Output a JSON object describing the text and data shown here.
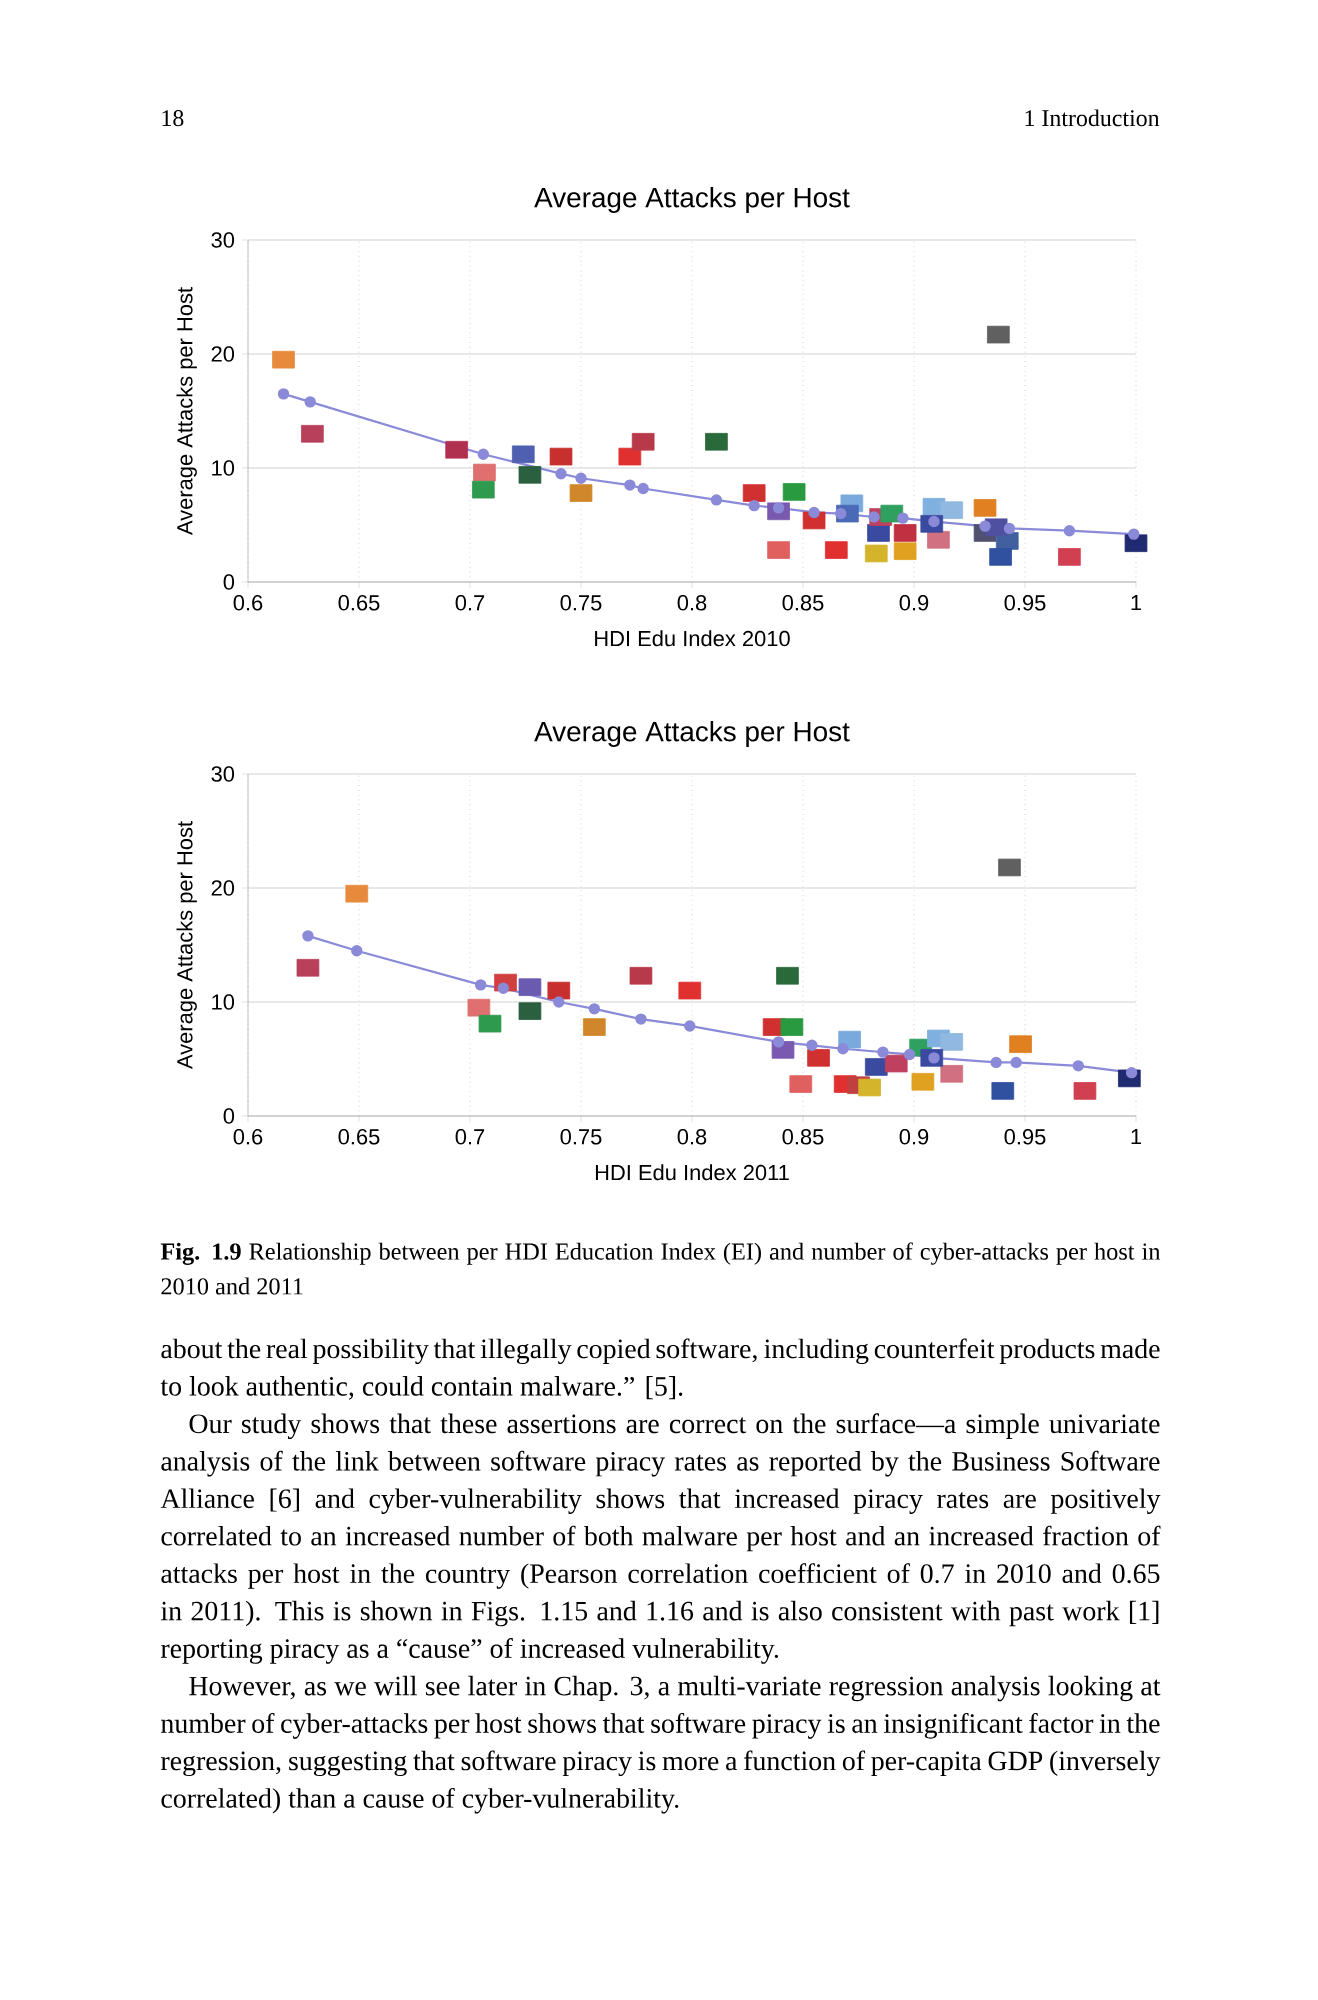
{
  "chart_data": [
    {
      "type": "scatter",
      "title": "Average Attacks per Host",
      "xlabel": "HDI Edu Index 2010",
      "ylabel": "Average Attacks per Host",
      "xlim": [
        0.6,
        1
      ],
      "ylim": [
        0,
        30
      ],
      "xticks": [
        0.6,
        0.65,
        0.7,
        0.75,
        0.8,
        0.85,
        0.9,
        0.95,
        1
      ],
      "yticks": [
        0,
        10,
        20,
        30
      ],
      "grid": true,
      "series": [
        {
          "type": "scatter",
          "marker": "square",
          "x": [
            0.616,
            0.629,
            0.694,
            0.7065,
            0.706,
            0.724,
            0.727,
            0.741,
            0.75,
            0.772,
            0.778,
            0.811,
            0.938,
            0.828,
            0.846,
            0.839,
            0.855,
            0.839,
            0.865,
            0.872,
            0.87,
            0.883,
            0.884,
            0.885,
            0.896,
            0.896,
            0.89,
            0.909,
            0.917,
            0.911,
            0.908,
            0.932,
            0.932,
            0.942,
            0.939,
            0.97,
            1.0,
            0.937
          ],
          "values": [
            19.5,
            13.0,
            11.6,
            9.6,
            8.1,
            11.2,
            9.4,
            11.0,
            7.8,
            11.0,
            12.3,
            12.3,
            21.7,
            7.8,
            7.9,
            6.2,
            5.4,
            2.8,
            2.8,
            6.9,
            6.0,
            2.5,
            4.3,
            5.7,
            2.7,
            4.3,
            6.0,
            6.6,
            6.3,
            3.7,
            5.1,
            6.5,
            4.3,
            3.6,
            2.2,
            2.2,
            3.4,
            4.8
          ],
          "colors": [
            "#e88a3c",
            "#b8405a",
            "#b03050",
            "#e07070",
            "#2e9a4e",
            "#5060b0",
            "#2a6040",
            "#c83030",
            "#d0862a",
            "#e03030",
            "#b83a4a",
            "#2a6a3a",
            "#606060",
            "#d03030",
            "#2a9a40",
            "#7a5ab0",
            "#d03030",
            "#e06060",
            "#e03030",
            "#7aaadd",
            "#4a6ab8",
            "#d4b42a",
            "#3a4aa0",
            "#c04060",
            "#e0a020",
            "#c03040",
            "#30a060",
            "#80b0e0",
            "#90b8e0",
            "#d07080",
            "#3a4aa0",
            "#e08020",
            "#505070",
            "#4060a0",
            "#3050a0",
            "#d04050",
            "#202a70",
            "#5050a0"
          ]
        },
        {
          "type": "line",
          "marker": "circle",
          "color": "#8a8ad8",
          "x": [
            0.616,
            0.628,
            0.706,
            0.741,
            0.75,
            0.772,
            0.778,
            0.811,
            0.828,
            0.839,
            0.855,
            0.867,
            0.882,
            0.895,
            0.909,
            0.932,
            0.943,
            0.97,
            0.999
          ],
          "values": [
            16.5,
            15.8,
            11.2,
            9.5,
            9.1,
            8.5,
            8.2,
            7.2,
            6.7,
            6.5,
            6.1,
            6.0,
            5.7,
            5.6,
            5.3,
            4.9,
            4.7,
            4.5,
            4.2
          ]
        }
      ],
      "annotations": [
        "18",
        "1 Introduction"
      ]
    },
    {
      "type": "scatter",
      "title": "Average Attacks per Host",
      "xlabel": "HDI Edu Index 2011",
      "ylabel": "Average Attacks per Host",
      "xlim": [
        0.6,
        1
      ],
      "ylim": [
        0,
        30
      ],
      "xticks": [
        0.6,
        0.65,
        0.7,
        0.75,
        0.8,
        0.85,
        0.9,
        0.95,
        1
      ],
      "yticks": [
        0,
        10,
        20,
        30
      ],
      "grid": true,
      "series": [
        {
          "type": "scatter",
          "marker": "square",
          "x": [
            0.649,
            0.627,
            0.704,
            0.709,
            0.716,
            0.727,
            0.727,
            0.74,
            0.756,
            0.777,
            0.799,
            0.843,
            0.943,
            0.837,
            0.845,
            0.841,
            0.849,
            0.857,
            0.869,
            0.875,
            0.88,
            0.871,
            0.883,
            0.892,
            0.904,
            0.903,
            0.911,
            0.917,
            0.917,
            0.908,
            0.948,
            0.94,
            0.977,
            0.997
          ],
          "values": [
            19.5,
            13.0,
            9.5,
            8.1,
            11.7,
            11.3,
            9.2,
            11.0,
            7.8,
            12.3,
            11.0,
            12.3,
            21.8,
            7.8,
            7.8,
            5.8,
            2.8,
            5.1,
            2.8,
            2.7,
            2.5,
            6.7,
            4.3,
            4.6,
            3.0,
            6.0,
            6.8,
            6.5,
            3.7,
            5.1,
            6.3,
            2.2,
            2.2,
            3.3
          ],
          "colors": [
            "#e88a3c",
            "#b8405a",
            "#e07070",
            "#2e9a4e",
            "#d04040",
            "#6a5ab0",
            "#2a6040",
            "#c83030",
            "#d0862a",
            "#b83a4a",
            "#e03030",
            "#2a6a3a",
            "#606060",
            "#d03030",
            "#2a9a40",
            "#7a5ab0",
            "#e06060",
            "#d03030",
            "#e03030",
            "#c04040",
            "#d4b42a",
            "#7aaadd",
            "#3a4aa0",
            "#c04060",
            "#e0a020",
            "#30a060",
            "#80b0e0",
            "#90b8e0",
            "#d07080",
            "#3a4aa0",
            "#e08020",
            "#3050a0",
            "#d04050",
            "#202a70"
          ]
        },
        {
          "type": "line",
          "marker": "circle",
          "color": "#8a8ad8",
          "x": [
            0.627,
            0.649,
            0.7048,
            0.715,
            0.74,
            0.756,
            0.777,
            0.799,
            0.839,
            0.854,
            0.868,
            0.886,
            0.898,
            0.909,
            0.937,
            0.946,
            0.974,
            0.998
          ],
          "values": [
            15.8,
            14.5,
            11.5,
            11.2,
            10.0,
            9.4,
            8.5,
            7.9,
            6.5,
            6.2,
            5.9,
            5.6,
            5.4,
            5.1,
            4.7,
            4.7,
            4.4,
            3.8
          ]
        }
      ],
      "annotations": [
        "**Fig. 1.9** Relationship between per HDI Education Index (EI) and number of cyber-attacks per host in 2010 and 2011",
        "about the real possibility that illegally copied software, including counterfeit products made to look authentic, could contain malware.” [5].",
        "Our study shows that these assertions are correct on the surface—a simple univariate analysis of the link between software piracy rates as reported by the Business Software Alliance [6] and cyber-vulnerability shows that increased piracy rates are positively correlated to an increased number of both malware per host and an increased fraction of attacks per host in the country (Pearson correlation coefficient of 0.7 in 2010 and 0.65 in 2011). This is shown in Figs. 1.15 and 1.16 and is also consistent with past work [1] reporting piracy as a “cause” of increased vulnerability.",
        "However, as we will see later in Chap. 3, a multi-variate regression analysis looking at number of cyber-attacks per host shows that software piracy is an insignificant factor in the regression, suggesting that software piracy is more a function of per-capita GDP (inversely correlated) than a cause of cyber-vulnerability."
      ]
    }
  ]
}
